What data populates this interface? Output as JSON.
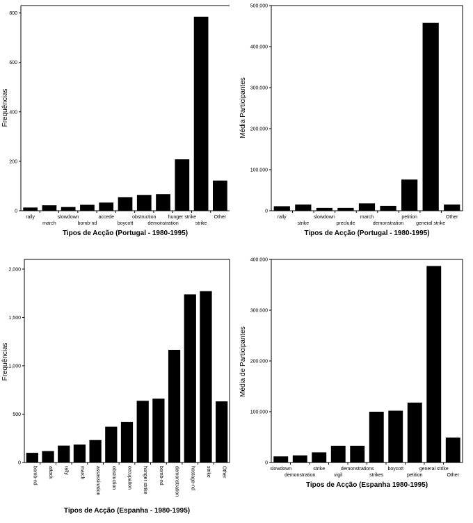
{
  "chart_data": [
    {
      "type": "bar",
      "title": "",
      "xlabel": "Tipos de Acção (Portugal - 1980-1995)",
      "ylabel": "Frequências",
      "categories": [
        "rally",
        "march",
        "slowdown",
        "bomb-nd",
        "accede",
        "boycott",
        "obstruction",
        "demonstration",
        "hunger strike",
        "strike",
        "Other"
      ],
      "values": [
        13,
        22,
        15,
        24,
        33,
        55,
        64,
        67,
        208,
        785,
        122
      ],
      "ylim": [
        0,
        830
      ],
      "yticks": [
        0,
        200,
        400,
        600,
        800
      ],
      "ytick_labels": [
        "0",
        "200",
        "400",
        "600",
        "800"
      ],
      "label_style": "staggered",
      "frame": "partial",
      "grid": false
    },
    {
      "type": "bar",
      "title": "",
      "xlabel": "Tipos de Acção (Portugal - 1980-1995)",
      "ylabel": "Média Participantes",
      "categories": [
        "rally",
        "strike",
        "slowdown",
        "preclude",
        "march",
        "demonstration",
        "petition",
        "general strike",
        "Other"
      ],
      "values": [
        11000,
        15000,
        7000,
        7000,
        18000,
        12000,
        76000,
        458000,
        15000
      ],
      "ylim": [
        0,
        500000
      ],
      "yticks": [
        0,
        100000,
        200000,
        300000,
        400000,
        500000
      ],
      "ytick_labels": [
        "0",
        "100.000",
        "200.000",
        "300.000",
        "400.000",
        "500.000"
      ],
      "label_style": "staggered",
      "frame": "full",
      "grid": false
    },
    {
      "type": "bar",
      "title": "",
      "xlabel": "Tipos de Acção (Espanha - 1980-1995)",
      "ylabel": "Frequências",
      "categories": [
        "bomb-nd",
        "attack",
        "rally",
        "march",
        "assassination",
        "obstruction",
        "occupation",
        "hunger strike",
        "bomb-nd",
        "demonstration",
        "hostage-nd",
        "strike",
        "Other"
      ],
      "values": [
        100,
        118,
        175,
        185,
        232,
        370,
        418,
        638,
        660,
        1165,
        1738,
        1772,
        632
      ],
      "ylim": [
        0,
        2100
      ],
      "yticks": [
        0,
        500,
        1000,
        1500,
        2000
      ],
      "ytick_labels": [
        "0",
        "500",
        "1,000",
        "1,500",
        "2,000"
      ],
      "label_style": "rotated",
      "frame": "full",
      "grid": false
    },
    {
      "type": "bar",
      "title": "",
      "xlabel": "Tipos de Acção (Espanha 1980-1995)",
      "ylabel": "Média de Participantes",
      "categories": [
        "slowdown",
        "demonstration",
        "strike",
        "vigil",
        "demonstrations",
        "strikes",
        "boycott",
        "petition",
        "general strike",
        "Other"
      ],
      "values": [
        12000,
        14000,
        20000,
        33000,
        33000,
        100000,
        102000,
        118000,
        387000,
        49000
      ],
      "ylim": [
        0,
        400000
      ],
      "yticks": [
        0,
        100000,
        200000,
        300000,
        400000
      ],
      "ytick_labels": [
        "0",
        "100.000",
        "200.000",
        "300.000",
        "400.000"
      ],
      "label_style": "staggered",
      "frame": "full",
      "grid": false
    }
  ]
}
